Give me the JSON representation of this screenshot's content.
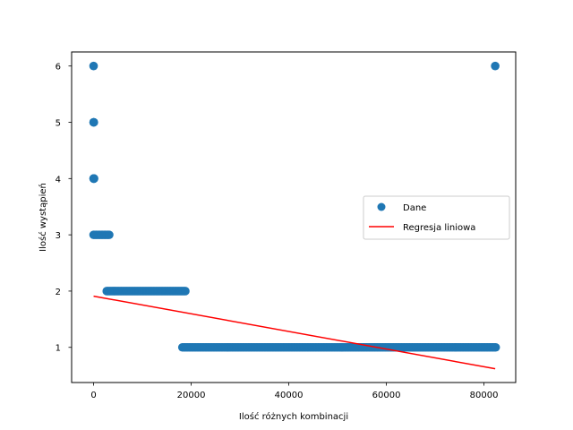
{
  "chart_data": {
    "type": "scatter",
    "xlabel": "Ilość różnych kombinacji",
    "ylabel": "Ilość wystąpień",
    "xlim": [
      -4500,
      86500
    ],
    "ylim": [
      0.375,
      6.25
    ],
    "xticks": [
      0,
      20000,
      40000,
      60000,
      80000
    ],
    "xtick_labels": [
      "0",
      "20000",
      "40000",
      "60000",
      "80000"
    ],
    "yticks": [
      1,
      2,
      3,
      4,
      5,
      6
    ],
    "ytick_labels": [
      "1",
      "2",
      "3",
      "4",
      "5",
      "6"
    ],
    "grid": false,
    "legend_position": "center-right",
    "series": [
      {
        "name": "Dane",
        "kind": "scatter",
        "color": "#1f77b4",
        "points": [
          {
            "x": 0,
            "y": 6
          },
          {
            "x": 82300,
            "y": 6
          },
          {
            "x": 0,
            "y": 5
          },
          {
            "x": 20,
            "y": 5
          },
          {
            "x": 60,
            "y": 5
          },
          {
            "x": 0,
            "y": 4
          },
          {
            "x": 20,
            "y": 4
          },
          {
            "x": 60,
            "y": 4
          },
          {
            "x": 100,
            "y": 4
          }
        ],
        "runs": [
          {
            "y": 3,
            "x_start": 0,
            "x_end": 3200
          },
          {
            "y": 2,
            "x_start": 2700,
            "x_end": 18800
          },
          {
            "y": 1,
            "x_start": 18200,
            "x_end": 82400
          }
        ]
      },
      {
        "name": "Regresja liniowa",
        "kind": "line",
        "color": "#ff0000",
        "x": [
          0,
          82300
        ],
        "y": [
          1.91,
          0.62
        ]
      }
    ]
  }
}
